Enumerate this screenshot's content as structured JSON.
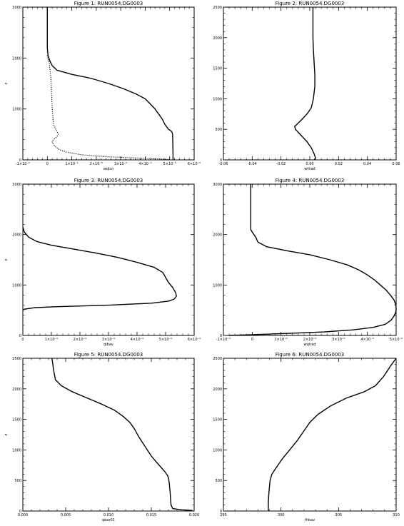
{
  "chart_data": [
    {
      "type": "line",
      "title": "Figure 1: RUN0054.DG0003",
      "xlabel": "wqlcn",
      "ylabel": "z",
      "xlim": [
        -1e-05,
        6e-05
      ],
      "ylim": [
        0,
        3000
      ],
      "xticks": [
        -1e-05,
        0,
        1e-05,
        2e-05,
        3e-05,
        4e-05,
        5e-05,
        6e-05
      ],
      "xtick_labels": [
        "-1×10⁻⁵",
        "0",
        "1×10⁻⁵",
        "2×10⁻⁵",
        "3×10⁻⁵",
        "4×10⁻⁵",
        "5×10⁻⁵",
        "6×10⁻⁵"
      ],
      "yticks": [
        0,
        1000,
        2000,
        3000
      ],
      "ytick_labels": [
        "0",
        "1000",
        "2000",
        "3000"
      ],
      "grid": false,
      "series": [
        {
          "style": "solid",
          "points": [
            [
              0,
              3000
            ],
            [
              0,
              2500
            ],
            [
              0,
              2200
            ],
            [
              3e-07,
              2050
            ],
            [
              1e-06,
              1950
            ],
            [
              2e-06,
              1850
            ],
            [
              4e-06,
              1760
            ],
            [
              1e-05,
              1680
            ],
            [
              1.8e-05,
              1600
            ],
            [
              2.5e-05,
              1500
            ],
            [
              3.1e-05,
              1400
            ],
            [
              3.6e-05,
              1300
            ],
            [
              4e-05,
              1200
            ],
            [
              4.2e-05,
              1100
            ],
            [
              4.4e-05,
              1000
            ],
            [
              4.55e-05,
              900
            ],
            [
              4.7e-05,
              800
            ],
            [
              4.8e-05,
              700
            ],
            [
              4.95e-05,
              600
            ],
            [
              5.05e-05,
              570
            ],
            [
              5.1e-05,
              540
            ],
            [
              5.12e-05,
              500
            ],
            [
              5.13e-05,
              300
            ],
            [
              5.14e-05,
              0
            ]
          ]
        },
        {
          "style": "dotted",
          "points": [
            [
              0,
              2050
            ],
            [
              8e-07,
              1900
            ],
            [
              1.5e-06,
              1600
            ],
            [
              2e-06,
              1000
            ],
            [
              2.5e-06,
              700
            ],
            [
              3.5e-06,
              600
            ],
            [
              4.5e-06,
              500
            ],
            [
              3.8e-06,
              450
            ],
            [
              2.5e-06,
              400
            ],
            [
              2e-06,
              350
            ],
            [
              2.5e-06,
              300
            ],
            [
              3.5e-06,
              250
            ],
            [
              5e-06,
              200
            ],
            [
              8e-06,
              150
            ],
            [
              1.4e-05,
              100
            ],
            [
              2.5e-05,
              60
            ],
            [
              4e-05,
              30
            ],
            [
              5e-05,
              10
            ]
          ]
        }
      ]
    },
    {
      "type": "line",
      "title": "Figure 2: RUN0054.DG0003",
      "xlabel": "wthad",
      "ylabel": "",
      "xlim": [
        -0.06,
        0.06
      ],
      "ylim": [
        0,
        2500
      ],
      "xticks": [
        -0.06,
        -0.04,
        -0.02,
        0,
        0.02,
        0.04,
        0.06
      ],
      "xtick_labels": [
        "-0.06",
        "-0.04",
        "-0.02",
        "0.00",
        "0.02",
        "0.04",
        "0.06"
      ],
      "yticks": [
        0,
        500,
        1000,
        1500,
        2000,
        2500
      ],
      "ytick_labels": [
        "0",
        "500",
        "1000",
        "1500",
        "2000",
        "2500"
      ],
      "grid": false,
      "series": [
        {
          "style": "solid",
          "points": [
            [
              0.0022,
              2500
            ],
            [
              0.0022,
              2200
            ],
            [
              0.0022,
              2000
            ],
            [
              0.0025,
              1800
            ],
            [
              0.003,
              1600
            ],
            [
              0.0035,
              1400
            ],
            [
              0.0035,
              1200
            ],
            [
              0.0025,
              1000
            ],
            [
              0.001,
              850
            ],
            [
              -0.002,
              750
            ],
            [
              -0.006,
              650
            ],
            [
              -0.009,
              580
            ],
            [
              -0.0105,
              550
            ],
            [
              -0.01,
              500
            ],
            [
              -0.006,
              400
            ],
            [
              -0.002,
              300
            ],
            [
              0.001,
              200
            ],
            [
              0.003,
              100
            ],
            [
              0.004,
              30
            ],
            [
              0.003,
              0
            ]
          ]
        }
      ]
    },
    {
      "type": "line",
      "title": "Figure 3: RUN0054.DG0003",
      "xlabel": "qlbav",
      "ylabel": "z",
      "xlim": [
        0,
        6e-05
      ],
      "ylim": [
        0,
        3000
      ],
      "xticks": [
        0,
        1e-05,
        2e-05,
        3e-05,
        4e-05,
        5e-05,
        6e-05
      ],
      "xtick_labels": [
        "0",
        "1×10⁻⁵",
        "2×10⁻⁵",
        "3×10⁻⁵",
        "4×10⁻⁵",
        "5×10⁻⁵",
        "6×10⁻⁵"
      ],
      "yticks": [
        0,
        1000,
        2000,
        3000
      ],
      "ytick_labels": [
        "0",
        "1000",
        "2000",
        "3000"
      ],
      "grid": false,
      "series": [
        {
          "style": "solid",
          "points": [
            [
              0,
              2150
            ],
            [
              5e-07,
              2050
            ],
            [
              2e-06,
              1950
            ],
            [
              5e-06,
              1860
            ],
            [
              1e-05,
              1790
            ],
            [
              1.7e-05,
              1720
            ],
            [
              2.5e-05,
              1640
            ],
            [
              3.3e-05,
              1550
            ],
            [
              4e-05,
              1450
            ],
            [
              4.6e-05,
              1350
            ],
            [
              4.9e-05,
              1250
            ],
            [
              5e-05,
              1150
            ],
            [
              5.1e-05,
              1050
            ],
            [
              5.25e-05,
              950
            ],
            [
              5.35e-05,
              850
            ],
            [
              5.38e-05,
              780
            ],
            [
              5.3e-05,
              720
            ],
            [
              5.1e-05,
              680
            ],
            [
              4.5e-05,
              640
            ],
            [
              3e-05,
              600
            ],
            [
              1.2e-05,
              570
            ],
            [
              4e-06,
              550
            ],
            [
              5e-07,
              520
            ],
            [
              0,
              500
            ]
          ]
        }
      ]
    },
    {
      "type": "line",
      "title": "Figure 4: RUN0054.DG0003",
      "xlabel": "wqlrad",
      "ylabel": "",
      "xlim": [
        -1e-05,
        5e-05
      ],
      "ylim": [
        0,
        3000
      ],
      "xticks": [
        -1e-05,
        0,
        1e-05,
        2e-05,
        3e-05,
        4e-05,
        5e-05
      ],
      "xtick_labels": [
        "-1×10⁻⁵",
        "0",
        "1×10⁻⁵",
        "2×10⁻⁵",
        "3×10⁻⁵",
        "4×10⁻⁵",
        "5×10⁻⁵"
      ],
      "yticks": [
        0,
        1000,
        2000,
        3000
      ],
      "ytick_labels": [
        "0",
        "1000",
        "2000",
        "3000"
      ],
      "grid": false,
      "series": [
        {
          "style": "solid",
          "points": [
            [
              -5e-07,
              3000
            ],
            [
              -5e-07,
              2500
            ],
            [
              -5e-07,
              2100
            ],
            [
              0,
              2050
            ],
            [
              1.2e-06,
              1950
            ],
            [
              2e-06,
              1850
            ],
            [
              5e-06,
              1760
            ],
            [
              1.2e-05,
              1680
            ],
            [
              2e-05,
              1600
            ],
            [
              2.7e-05,
              1500
            ],
            [
              3.3e-05,
              1400
            ],
            [
              3.7e-05,
              1300
            ],
            [
              4e-05,
              1200
            ],
            [
              4.25e-05,
              1100
            ],
            [
              4.45e-05,
              1000
            ],
            [
              4.65e-05,
              900
            ],
            [
              4.8e-05,
              800
            ],
            [
              4.93e-05,
              700
            ],
            [
              4.99e-05,
              600
            ],
            [
              5e-05,
              520
            ],
            [
              4.98e-05,
              450
            ],
            [
              4.92e-05,
              380
            ],
            [
              4.82e-05,
              300
            ],
            [
              4.62e-05,
              220
            ],
            [
              4.2e-05,
              160
            ],
            [
              3.5e-05,
              110
            ],
            [
              2.5e-05,
              70
            ],
            [
              1.2e-05,
              40
            ],
            [
              0,
              15
            ],
            [
              -8e-06,
              0
            ]
          ]
        }
      ]
    },
    {
      "type": "line",
      "title": "Figure 5: RUN0054.DG0003",
      "xlabel": "qbar01",
      "ylabel": "z",
      "xlim": [
        0,
        0.02
      ],
      "ylim": [
        0,
        2500
      ],
      "xticks": [
        0,
        0.005,
        0.01,
        0.015,
        0.02
      ],
      "xtick_labels": [
        "0.000",
        "0.005",
        "0.010",
        "0.015",
        "0.020"
      ],
      "yticks": [
        0,
        500,
        1000,
        1500,
        2000,
        2500
      ],
      "ytick_labels": [
        "0",
        "500",
        "1000",
        "1500",
        "2000",
        "2500"
      ],
      "grid": false,
      "series": [
        {
          "style": "solid",
          "points": [
            [
              0.0034,
              2500
            ],
            [
              0.0036,
              2300
            ],
            [
              0.0038,
              2150
            ],
            [
              0.0045,
              2050
            ],
            [
              0.0058,
              1950
            ],
            [
              0.0075,
              1850
            ],
            [
              0.0092,
              1750
            ],
            [
              0.0107,
              1650
            ],
            [
              0.0117,
              1550
            ],
            [
              0.0125,
              1450
            ],
            [
              0.013,
              1350
            ],
            [
              0.0136,
              1200
            ],
            [
              0.0143,
              1050
            ],
            [
              0.015,
              900
            ],
            [
              0.0156,
              800
            ],
            [
              0.0161,
              720
            ],
            [
              0.0166,
              640
            ],
            [
              0.0169,
              580
            ],
            [
              0.017,
              540
            ],
            [
              0.0171,
              450
            ],
            [
              0.0172,
              300
            ],
            [
              0.0173,
              100
            ],
            [
              0.0175,
              40
            ],
            [
              0.0185,
              20
            ],
            [
              0.0198,
              10
            ]
          ]
        }
      ]
    },
    {
      "type": "line",
      "title": "Figure 6: RUN0054.DG0003",
      "xlabel": "thbav",
      "ylabel": "",
      "xlim": [
        295,
        310
      ],
      "ylim": [
        0,
        2500
      ],
      "xticks": [
        295,
        300,
        305,
        310
      ],
      "xtick_labels": [
        "295",
        "300",
        "305",
        "310"
      ],
      "yticks": [
        0,
        500,
        1000,
        1500,
        2000,
        2500
      ],
      "ytick_labels": [
        "0",
        "500",
        "1000",
        "1500",
        "2000",
        "2500"
      ],
      "grid": false,
      "series": [
        {
          "style": "solid",
          "points": [
            [
              298.9,
              0
            ],
            [
              298.9,
              150
            ],
            [
              298.95,
              300
            ],
            [
              299.05,
              500
            ],
            [
              299.2,
              600
            ],
            [
              299.55,
              700
            ],
            [
              300.1,
              850
            ],
            [
              300.75,
              1000
            ],
            [
              301.4,
              1150
            ],
            [
              301.95,
              1300
            ],
            [
              302.5,
              1450
            ],
            [
              303.2,
              1580
            ],
            [
              304.3,
              1720
            ],
            [
              305.7,
              1850
            ],
            [
              307.2,
              1950
            ],
            [
              308.2,
              2050
            ],
            [
              308.9,
              2200
            ],
            [
              309.5,
              2370
            ],
            [
              310,
              2500
            ]
          ]
        }
      ]
    }
  ]
}
